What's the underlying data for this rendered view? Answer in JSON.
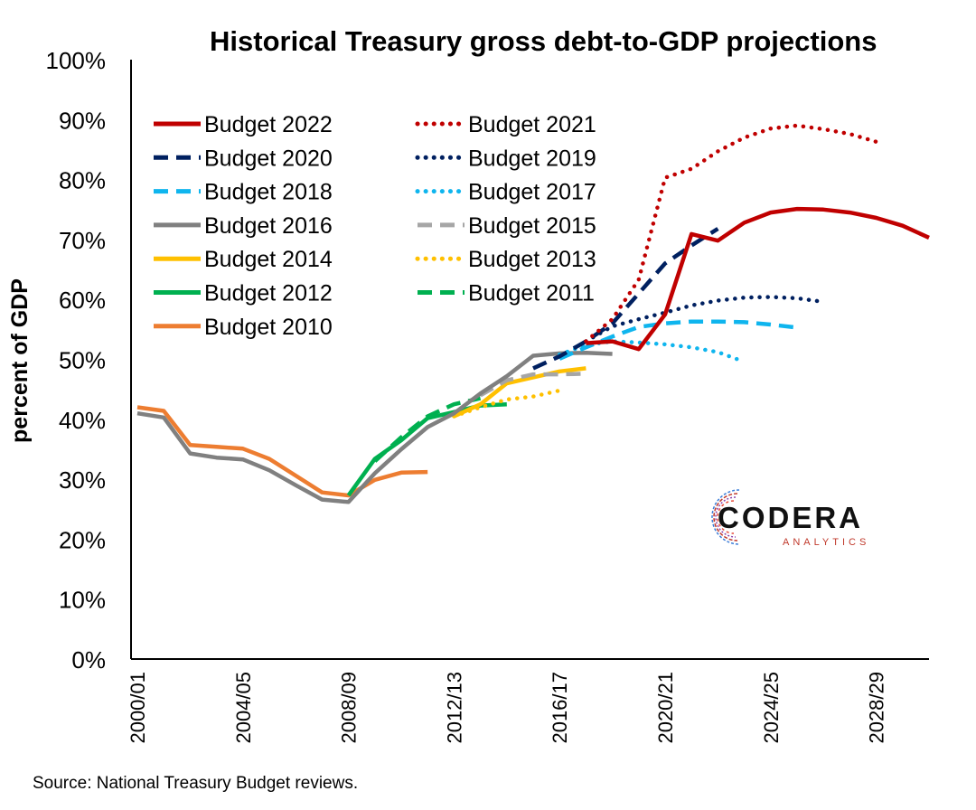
{
  "title": "Historical Treasury gross debt-to-GDP projections",
  "source": "Source: National Treasury Budget reviews.",
  "logo": {
    "name": "CODERA",
    "tagline": "ANALYTICS"
  },
  "chart_data": {
    "type": "line",
    "title": "Historical Treasury gross debt-to-GDP projections",
    "ylabel": "percent of GDP",
    "xlabel": "",
    "ylim": [
      0,
      100
    ],
    "yticks": [
      "0%",
      "10%",
      "20%",
      "30%",
      "40%",
      "50%",
      "60%",
      "70%",
      "80%",
      "90%",
      "100%"
    ],
    "x_categories": [
      "2000/01",
      "2001/02",
      "2002/03",
      "2003/04",
      "2004/05",
      "2005/06",
      "2006/07",
      "2007/08",
      "2008/09",
      "2009/10",
      "2010/11",
      "2011/12",
      "2012/13",
      "2013/14",
      "2014/15",
      "2015/16",
      "2016/17",
      "2017/18",
      "2018/19",
      "2019/20",
      "2020/21",
      "2021/22",
      "2022/23",
      "2023/24",
      "2024/25",
      "2025/26",
      "2026/27",
      "2027/28",
      "2028/29",
      "2029/30"
    ],
    "xtick_labels": [
      "2000/01",
      "2004/05",
      "2008/09",
      "2012/13",
      "2016/17",
      "2020/21",
      "2024/25",
      "2028/29"
    ],
    "grid": false,
    "legend_position": "top-left",
    "series": [
      {
        "name": "Budget 2010",
        "color": "#ED7D31",
        "dash": "solid",
        "start": "2000/01",
        "values": [
          42.0,
          41.4,
          35.7,
          35.4,
          35.1,
          33.4,
          30.6,
          27.8,
          27.3,
          29.9,
          31.1,
          31.2
        ]
      },
      {
        "name": "Budget 2011",
        "color": "#00B050",
        "dash": "dash",
        "start": "2009/10",
        "values": [
          33.0,
          37.0,
          40.5,
          42.5,
          43.5
        ]
      },
      {
        "name": "Budget 2012",
        "color": "#00B050",
        "dash": "solid",
        "start": "2008/09",
        "values": [
          27.3,
          33.4,
          36.5,
          40.2,
          41.2,
          42.3,
          42.5
        ]
      },
      {
        "name": "Budget 2013",
        "color": "#FFC000",
        "dash": "dot",
        "start": "2012/13",
        "values": [
          40.5,
          42.0,
          43.3,
          43.8,
          44.8
        ]
      },
      {
        "name": "Budget 2014",
        "color": "#FFC000",
        "dash": "solid",
        "start": "2012/13",
        "values": [
          40.5,
          42.5,
          46.0,
          47.0,
          48.0,
          48.5
        ]
      },
      {
        "name": "Budget 2015",
        "color": "#A6A6A6",
        "dash": "dash",
        "start": "2013/14",
        "values": [
          44.0,
          46.5,
          47.5,
          47.5,
          47.6
        ]
      },
      {
        "name": "Budget 2016",
        "color": "#808080",
        "dash": "solid",
        "start": "2000/01",
        "values": [
          41.0,
          40.3,
          34.3,
          33.6,
          33.3,
          31.5,
          29.0,
          26.6,
          26.2,
          31.0,
          35.0,
          38.7,
          41.0,
          44.3,
          47.2,
          50.6,
          51.0,
          51.1,
          50.9
        ]
      },
      {
        "name": "Budget 2017",
        "color": "#0FB5EE",
        "dash": "dot",
        "start": "2016/17",
        "values": [
          50.8,
          52.4,
          53.0,
          52.8,
          52.5,
          52.0,
          51.2,
          49.6
        ]
      },
      {
        "name": "Budget 2018",
        "color": "#0FB5EE",
        "dash": "dash",
        "start": "2016/17",
        "values": [
          50.1,
          52.0,
          53.8,
          55.4,
          56.0,
          56.3,
          56.3,
          56.2,
          55.8,
          55.3
        ]
      },
      {
        "name": "Budget 2019",
        "color": "#002060",
        "dash": "dot",
        "start": "2017/18",
        "values": [
          53.0,
          55.5,
          56.7,
          57.8,
          59.0,
          59.8,
          60.3,
          60.4,
          60.2,
          59.6
        ]
      },
      {
        "name": "Budget 2020",
        "color": "#002060",
        "dash": "dash",
        "start": "2015/16",
        "values": [
          48.5,
          50.5,
          53.0,
          56.0,
          61.0,
          66.0,
          69.0,
          71.8
        ]
      },
      {
        "name": "Budget 2021",
        "color": "#C00000",
        "dash": "dot",
        "start": "2017/18",
        "values": [
          53.0,
          56.7,
          63.3,
          80.3,
          81.8,
          84.7,
          87.0,
          88.5,
          89.0,
          88.4,
          87.6,
          86.3
        ]
      },
      {
        "name": "Budget 2022",
        "color": "#C00000",
        "dash": "solid",
        "start": "2017/18",
        "values": [
          52.7,
          53.0,
          51.7,
          57.5,
          70.9,
          69.8,
          72.8,
          74.5,
          75.1,
          75.0,
          74.5,
          73.6,
          72.3,
          70.3
        ]
      }
    ],
    "legend_order": [
      "Budget 2022",
      "Budget 2021",
      "Budget 2020",
      "Budget 2019",
      "Budget 2018",
      "Budget 2017",
      "Budget 2016",
      "Budget 2015",
      "Budget 2014",
      "Budget 2013",
      "Budget 2012",
      "Budget 2011",
      "Budget 2010"
    ]
  }
}
